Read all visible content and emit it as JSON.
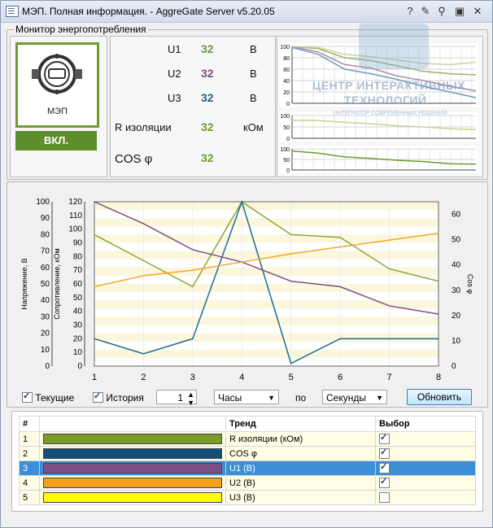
{
  "window": {
    "title": "МЭП. Полная информация. - AggreGate Server v5.20.05"
  },
  "titlebar_buttons": [
    "help-icon",
    "edit-icon",
    "search-icon",
    "restore-icon",
    "close-icon"
  ],
  "monitor": {
    "group_label": "Монитор энергопотребления",
    "device_label": "МЭП",
    "status_label": "ВКЛ.",
    "params": [
      {
        "name": "U1",
        "value": "32",
        "unit": "В",
        "color": "#6f9a2e"
      },
      {
        "name": "U2",
        "value": "32",
        "unit": "В",
        "color": "#7a4a86"
      },
      {
        "name": "U3",
        "value": "32",
        "unit": "В",
        "color": "#1c5f8c"
      },
      {
        "name": "R  изоляции",
        "value": "32",
        "unit": "кОм",
        "color": "#6f9a2e"
      },
      {
        "name": "COS φ",
        "value": "32",
        "unit": "",
        "color": "#6f9a2e"
      }
    ],
    "mini_ticks": {
      "top": [
        "100",
        "80",
        "60",
        "40",
        "20",
        "0"
      ],
      "mid": [
        "100",
        "50",
        "0"
      ],
      "bot": [
        "100",
        "50",
        "0"
      ]
    }
  },
  "watermark": {
    "line1": "ЦЕНТР ИНТЕРАКТИВНЫХ",
    "line2": "ТЕХНОЛОГИЙ",
    "line3": "ИНТЕГРАТОР СОВРЕМЕННЫХ РЕШЕНИЙ"
  },
  "chart_data": {
    "type": "line",
    "x": [
      1,
      2,
      3,
      4,
      5,
      6,
      7,
      8
    ],
    "left_axes": [
      {
        "label": "Напряжение, В",
        "range": [
          0,
          100
        ],
        "ticks": [
          "0",
          "10",
          "20",
          "30",
          "40",
          "50",
          "60",
          "70",
          "80",
          "90",
          "100"
        ]
      },
      {
        "label": "Сопротивление, кОм",
        "range": [
          0,
          120
        ],
        "ticks": [
          "0",
          "10",
          "20",
          "30",
          "40",
          "50",
          "60",
          "70",
          "80",
          "90",
          "100",
          "110",
          "120"
        ]
      }
    ],
    "right_axis": {
      "label": "Cos φ",
      "range": [
        0,
        65
      ],
      "ticks": [
        "0",
        "10",
        "20",
        "30",
        "40",
        "50",
        "60"
      ]
    },
    "series": [
      {
        "name": "R изоляции (кОм)",
        "axis": "left_voltage",
        "color": "#8aa63a",
        "values": [
          96,
          77,
          58,
          120,
          96,
          94,
          71,
          62
        ]
      },
      {
        "name": "COS φ",
        "axis": "left_voltage",
        "color": "#1c6b8e",
        "values": [
          20,
          9,
          20,
          120,
          2,
          20,
          20,
          20
        ]
      },
      {
        "name": "U1 (В)",
        "axis": "left_voltage",
        "color": "#7d4f85",
        "values": [
          120,
          104,
          85,
          76,
          62,
          58,
          44,
          38
        ]
      },
      {
        "name": "U2 (В)",
        "axis": "left_voltage",
        "color": "#f5a623",
        "values": [
          58,
          66,
          70,
          76,
          82,
          87,
          92,
          97
        ]
      }
    ],
    "grid": true,
    "legend": "none"
  },
  "controls": {
    "current_label": "Текущие",
    "current_checked": true,
    "history_label": "История",
    "history_checked": true,
    "spinner_value": "1",
    "unit_from": "Часы",
    "by_label": "по",
    "unit_to": "Секунды",
    "refresh_label": "Обновить"
  },
  "table": {
    "headers": [
      "#",
      "",
      "Тренд",
      "Выбор"
    ],
    "rows": [
      {
        "num": "1",
        "color": "#7a9a2a",
        "trend": "R изоляции (кОм)",
        "checked": true,
        "selected": false
      },
      {
        "num": "2",
        "color": "#144f7a",
        "trend": "COS φ",
        "checked": true,
        "selected": false
      },
      {
        "num": "3",
        "color": "#7d4f85",
        "trend": "U1 (В)",
        "checked": true,
        "selected": true
      },
      {
        "num": "4",
        "color": "#f5a01a",
        "trend": "U2 (В)",
        "checked": true,
        "selected": false
      },
      {
        "num": "5",
        "color": "#ffff00",
        "trend": "U3 (В)",
        "checked": false,
        "selected": false
      }
    ]
  }
}
